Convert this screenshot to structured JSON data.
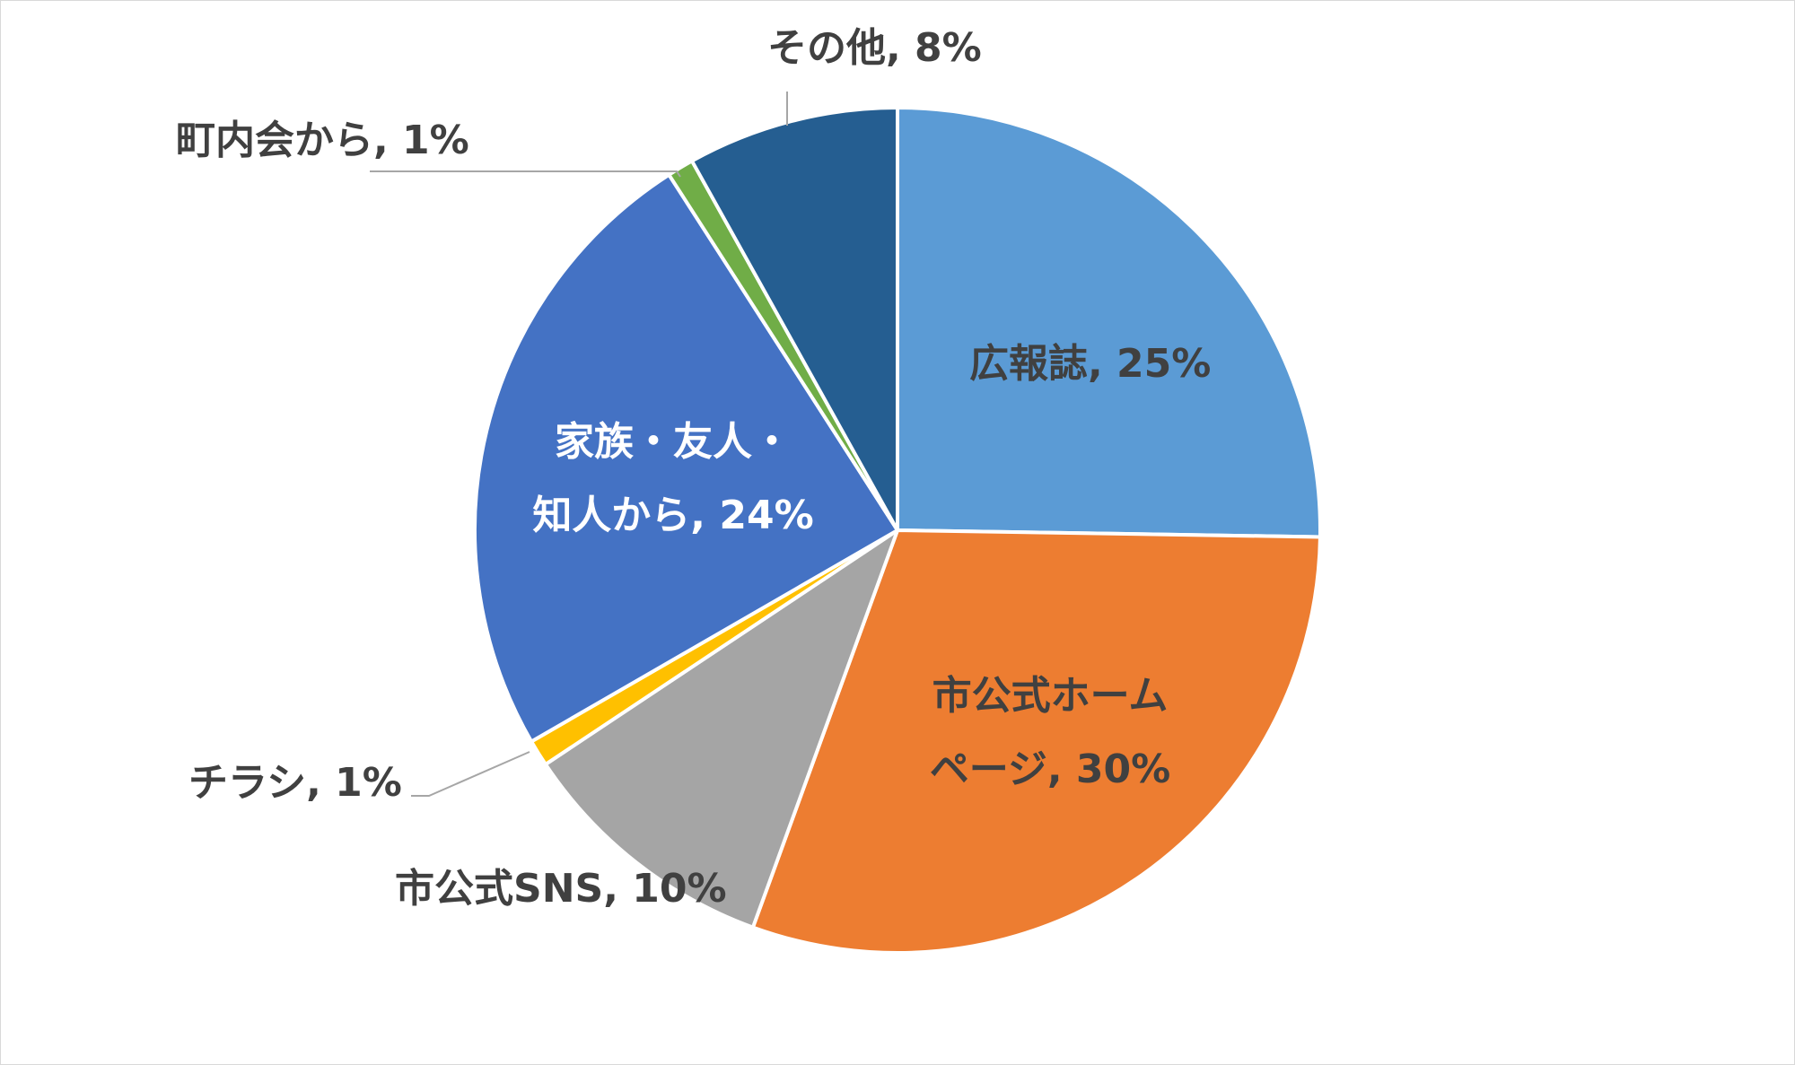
{
  "chart_data": {
    "type": "pie",
    "start_angle_deg": 0,
    "direction": "clockwise",
    "slices": [
      {
        "label": "広報誌",
        "value": 25,
        "display": "25%",
        "color": "#5B9BD5"
      },
      {
        "label": "市公式ホームページ",
        "value": 30,
        "display": "30%",
        "color": "#ED7D31"
      },
      {
        "label": "市公式SNS",
        "value": 10,
        "display": "10%",
        "color": "#A5A5A5"
      },
      {
        "label": "チラシ",
        "value": 1,
        "display": "1%",
        "color": "#FFC000"
      },
      {
        "label": "家族・友人・知人から",
        "value": 24,
        "display": "24%",
        "color": "#4472C4"
      },
      {
        "label": "町内会から",
        "value": 1,
        "display": "1%",
        "color": "#70AD47"
      },
      {
        "label": "その他",
        "value": 8,
        "display": "8%",
        "color": "#255E91"
      }
    ],
    "data_labels": [
      {
        "slice": 0,
        "lines": [
          "広報誌, 25%"
        ]
      },
      {
        "slice": 1,
        "lines": [
          "市公式ホーム",
          "ページ, 30%"
        ]
      },
      {
        "slice": 2,
        "lines": [
          "市公式SNS, 10%"
        ]
      },
      {
        "slice": 3,
        "lines": [
          "チラシ, 1%"
        ]
      },
      {
        "slice": 4,
        "lines": [
          "家族・友人・",
          "知人から, 24%"
        ]
      },
      {
        "slice": 5,
        "lines": [
          "町内会から, 1%"
        ]
      },
      {
        "slice": 6,
        "lines": [
          "その他, 8%"
        ]
      }
    ],
    "legend": "none"
  }
}
